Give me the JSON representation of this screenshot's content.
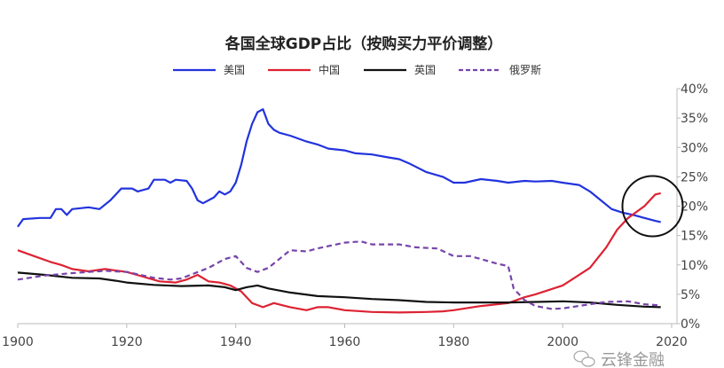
{
  "chart_data": {
    "type": "line",
    "title": "各国全球GDP占比（按购买力平价调整）",
    "xlabel": "",
    "ylabel": "",
    "xlim": [
      1900,
      2020
    ],
    "ylim": [
      0,
      40
    ],
    "x_ticks": [
      "1900",
      "1920",
      "1940",
      "1960",
      "1980",
      "2000",
      "2020"
    ],
    "y_ticks": [
      "0%",
      "5%",
      "10%",
      "15%",
      "20%",
      "25%",
      "30%",
      "35%",
      "40%"
    ],
    "y_axis_side": "right",
    "grid": false,
    "legend_position": "top",
    "series": [
      {
        "name": "美国",
        "color": "#2233dd",
        "dash": false,
        "points": [
          [
            1900,
            16.5
          ],
          [
            1901,
            17.8
          ],
          [
            1904,
            18
          ],
          [
            1906,
            18
          ],
          [
            1907,
            19.5
          ],
          [
            1908,
            19.5
          ],
          [
            1909,
            18.5
          ],
          [
            1910,
            19.5
          ],
          [
            1913,
            19.8
          ],
          [
            1915,
            19.5
          ],
          [
            1917,
            21
          ],
          [
            1919,
            23
          ],
          [
            1921,
            23
          ],
          [
            1922,
            22.5
          ],
          [
            1924,
            23
          ],
          [
            1925,
            24.5
          ],
          [
            1927,
            24.5
          ],
          [
            1928,
            24
          ],
          [
            1929,
            24.5
          ],
          [
            1931,
            24.3
          ],
          [
            1932,
            23
          ],
          [
            1933,
            21
          ],
          [
            1934,
            20.5
          ],
          [
            1936,
            21.5
          ],
          [
            1937,
            22.5
          ],
          [
            1938,
            22
          ],
          [
            1939,
            22.5
          ],
          [
            1940,
            24
          ],
          [
            1941,
            27
          ],
          [
            1942,
            31
          ],
          [
            1943,
            34
          ],
          [
            1944,
            36
          ],
          [
            1945,
            36.5
          ],
          [
            1946,
            34
          ],
          [
            1947,
            33
          ],
          [
            1948,
            32.5
          ],
          [
            1950,
            32
          ],
          [
            1953,
            31
          ],
          [
            1955,
            30.5
          ],
          [
            1957,
            29.8
          ],
          [
            1960,
            29.5
          ],
          [
            1962,
            29
          ],
          [
            1965,
            28.8
          ],
          [
            1968,
            28.3
          ],
          [
            1970,
            28
          ],
          [
            1972,
            27.2
          ],
          [
            1975,
            25.8
          ],
          [
            1978,
            25
          ],
          [
            1980,
            24
          ],
          [
            1982,
            24
          ],
          [
            1985,
            24.6
          ],
          [
            1988,
            24.3
          ],
          [
            1990,
            24
          ],
          [
            1993,
            24.3
          ],
          [
            1995,
            24.2
          ],
          [
            1998,
            24.3
          ],
          [
            2000,
            24
          ],
          [
            2003,
            23.6
          ],
          [
            2005,
            22.5
          ],
          [
            2007,
            21
          ],
          [
            2009,
            19.5
          ],
          [
            2011,
            18.9
          ],
          [
            2013,
            18.5
          ],
          [
            2015,
            18
          ],
          [
            2017,
            17.5
          ],
          [
            2018,
            17.3
          ]
        ]
      },
      {
        "name": "中国",
        "color": "#dd2233",
        "dash": false,
        "points": [
          [
            1900,
            12.5
          ],
          [
            1903,
            11.5
          ],
          [
            1906,
            10.5
          ],
          [
            1908,
            10
          ],
          [
            1910,
            9.3
          ],
          [
            1913,
            8.9
          ],
          [
            1916,
            9.3
          ],
          [
            1920,
            8.8
          ],
          [
            1923,
            8
          ],
          [
            1926,
            7.2
          ],
          [
            1929,
            7
          ],
          [
            1931,
            7.5
          ],
          [
            1933,
            8.3
          ],
          [
            1935,
            7.2
          ],
          [
            1937,
            7
          ],
          [
            1939,
            6.5
          ],
          [
            1941,
            5.5
          ],
          [
            1943,
            3.5
          ],
          [
            1945,
            2.8
          ],
          [
            1947,
            3.5
          ],
          [
            1950,
            2.8
          ],
          [
            1953,
            2.3
          ],
          [
            1955,
            2.8
          ],
          [
            1957,
            2.8
          ],
          [
            1960,
            2.3
          ],
          [
            1965,
            2
          ],
          [
            1970,
            1.9
          ],
          [
            1975,
            2
          ],
          [
            1978,
            2.1
          ],
          [
            1980,
            2.3
          ],
          [
            1985,
            3.0
          ],
          [
            1990,
            3.5
          ],
          [
            1993,
            4.5
          ],
          [
            1995,
            5
          ],
          [
            2000,
            6.5
          ],
          [
            2005,
            9.5
          ],
          [
            2008,
            13
          ],
          [
            2010,
            16
          ],
          [
            2012,
            18
          ],
          [
            2015,
            20
          ],
          [
            2017,
            22
          ],
          [
            2018,
            22.2
          ]
        ]
      },
      {
        "name": "英国",
        "color": "#111111",
        "dash": false,
        "points": [
          [
            1900,
            8.7
          ],
          [
            1905,
            8.3
          ],
          [
            1910,
            7.8
          ],
          [
            1915,
            7.7
          ],
          [
            1918,
            7.3
          ],
          [
            1920,
            7.0
          ],
          [
            1925,
            6.6
          ],
          [
            1930,
            6.4
          ],
          [
            1935,
            6.5
          ],
          [
            1938,
            6.2
          ],
          [
            1940,
            5.7
          ],
          [
            1942,
            6.2
          ],
          [
            1944,
            6.5
          ],
          [
            1946,
            6
          ],
          [
            1950,
            5.3
          ],
          [
            1955,
            4.7
          ],
          [
            1960,
            4.5
          ],
          [
            1965,
            4.2
          ],
          [
            1970,
            4.0
          ],
          [
            1975,
            3.7
          ],
          [
            1980,
            3.6
          ],
          [
            1985,
            3.6
          ],
          [
            1990,
            3.6
          ],
          [
            1995,
            3.7
          ],
          [
            2000,
            3.8
          ],
          [
            2005,
            3.6
          ],
          [
            2010,
            3.2
          ],
          [
            2015,
            2.9
          ],
          [
            2018,
            2.8
          ]
        ]
      },
      {
        "name": "俄罗斯",
        "color": "#7744aa",
        "dash": true,
        "points": [
          [
            1900,
            7.5
          ],
          [
            1905,
            8.2
          ],
          [
            1910,
            8.6
          ],
          [
            1913,
            8.8
          ],
          [
            1916,
            9
          ],
          [
            1920,
            8.8
          ],
          [
            1925,
            7.8
          ],
          [
            1928,
            7.5
          ],
          [
            1930,
            7.7
          ],
          [
            1935,
            9.5
          ],
          [
            1938,
            11
          ],
          [
            1940,
            11.5
          ],
          [
            1942,
            9.5
          ],
          [
            1944,
            8.8
          ],
          [
            1946,
            9.5
          ],
          [
            1948,
            11
          ],
          [
            1950,
            12.5
          ],
          [
            1953,
            12.3
          ],
          [
            1955,
            12.8
          ],
          [
            1960,
            13.8
          ],
          [
            1963,
            14
          ],
          [
            1965,
            13.5
          ],
          [
            1970,
            13.5
          ],
          [
            1973,
            13
          ],
          [
            1977,
            12.8
          ],
          [
            1980,
            11.5
          ],
          [
            1983,
            11.5
          ],
          [
            1985,
            11
          ],
          [
            1988,
            10.2
          ],
          [
            1990,
            9.8
          ],
          [
            1991,
            6
          ],
          [
            1993,
            4
          ],
          [
            1995,
            3
          ],
          [
            1998,
            2.5
          ],
          [
            2000,
            2.6
          ],
          [
            2005,
            3.3
          ],
          [
            2008,
            3.7
          ],
          [
            2012,
            3.8
          ],
          [
            2015,
            3.3
          ],
          [
            2018,
            3.1
          ]
        ]
      }
    ],
    "annotation": {
      "type": "circle",
      "center": [
        2016.5,
        20
      ]
    }
  },
  "watermark": {
    "text": "云锋金融",
    "icon": "wechat-icon"
  }
}
